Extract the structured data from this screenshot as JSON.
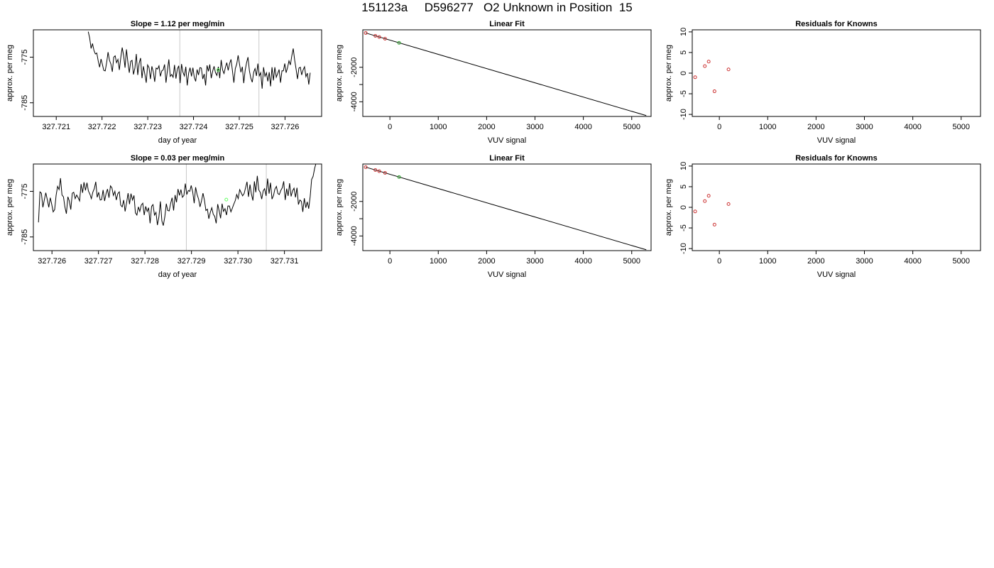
{
  "title": "151123a     D596277   O2 Unknown in Position  15",
  "chart_data": [
    {
      "type": "line",
      "title": "Slope =  1.12  per meg/min",
      "xlabel": "day of year",
      "ylabel": "approx. per meg",
      "xlim": [
        327.7205,
        327.7268
      ],
      "ylim": [
        -788,
        -769
      ],
      "xticks": [
        327.721,
        327.722,
        327.723,
        327.724,
        327.725,
        327.726
      ],
      "xtick_labels": [
        "327.721",
        "327.722",
        "327.723",
        "327.724",
        "327.725",
        "327.726"
      ],
      "yticks": [
        -775,
        -785
      ],
      "ytick_labels": [
        "-775",
        "-785"
      ],
      "vlines": [
        327.7237,
        327.72543
      ],
      "trace": {
        "x_start": 327.7217,
        "x_end": 327.72655,
        "y": [
          -769.4,
          -770.8,
          -773.1,
          -772.0,
          -773.5,
          -774.3,
          -774.1,
          -775.8,
          -777.2,
          -775.4,
          -776.6,
          -777.9,
          -778.0,
          -776.2,
          -773.9,
          -775.7,
          -776.5,
          -778.2,
          -775.0,
          -774.7,
          -776.2,
          -775.5,
          -777.8,
          -775.1,
          -772.9,
          -774.6,
          -777.3,
          -773.3,
          -776.1,
          -778.4,
          -775.9,
          -775.7,
          -778.8,
          -777.4,
          -774.3,
          -778.9,
          -776.3,
          -775.2,
          -779.6,
          -777.0,
          -778.7,
          -780.6,
          -776.7,
          -777.3,
          -779.8,
          -777.0,
          -778.2,
          -780.4,
          -777.4,
          -777.6,
          -776.9,
          -779.2,
          -778.0,
          -777.8,
          -776.6,
          -780.6,
          -777.9,
          -775.5,
          -779.2,
          -778.8,
          -779.4,
          -776.7,
          -779.7,
          -777.6,
          -776.9,
          -780.7,
          -776.5,
          -778.3,
          -779.1,
          -777.1,
          -781.2,
          -778.5,
          -777.3,
          -779.2,
          -777.3,
          -779.4,
          -780.3,
          -777.7,
          -778.9,
          -777.3,
          -777.4,
          -779.8,
          -778.7,
          -781.2,
          -776.8,
          -778.1,
          -776.6,
          -779.6,
          -778.1,
          -777.0,
          -778.4,
          -779.0,
          -777.1,
          -779.6,
          -775.6,
          -777.8,
          -778.6,
          -777.3,
          -776.2,
          -777.9,
          -776.4,
          -775.5,
          -778.0,
          -780.6,
          -777.5,
          -776.5,
          -774.6,
          -776.5,
          -778.3,
          -777.1,
          -780.7,
          -777.9,
          -776.2,
          -775.0,
          -778.0,
          -779.6,
          -780.5,
          -778.3,
          -777.5,
          -779.1,
          -776.4,
          -779.1,
          -778.4,
          -781.9,
          -777.2,
          -779.2,
          -778.4,
          -780.3,
          -778.3,
          -781.4,
          -777.2,
          -780.1,
          -777.2,
          -779.4,
          -778.6,
          -777.7,
          -780.6,
          -778.0,
          -778.0,
          -776.4,
          -778.4,
          -777.3,
          -775.8,
          -776.7,
          -774.7,
          -773.1,
          -775.6,
          -777.6,
          -779.8,
          -777.4,
          -777.2,
          -778.9,
          -777.8,
          -777.1,
          -779.3,
          -778.5,
          -781.0,
          -778.4
        ]
      },
      "marker": {
        "x": 327.72454,
        "y": -777.8,
        "color": "#66ff66"
      }
    },
    {
      "type": "scatter",
      "title": "Linear Fit",
      "xlabel": "VUV signal",
      "ylabel": "approx. per meg",
      "xlim": [
        -560,
        5400
      ],
      "ylim": [
        -4850,
        170
      ],
      "xticks": [
        0,
        1000,
        2000,
        3000,
        4000,
        5000
      ],
      "xtick_labels": [
        "0",
        "1000",
        "2000",
        "3000",
        "4000",
        "5000"
      ],
      "yticks": [
        -2000,
        -3000,
        -4000
      ],
      "ytick_labels": [
        "-2000",
        "",
        "-4000"
      ],
      "fit_line": {
        "x": [
          -500,
          5300
        ],
        "y": [
          -13,
          -4800
        ]
      },
      "points": [
        {
          "x": -500,
          "y": -13,
          "color": "#cc3333"
        },
        {
          "x": -300,
          "y": -180,
          "color": "#cc3333"
        },
        {
          "x": -220,
          "y": -247,
          "color": "#cc3333"
        },
        {
          "x": -100,
          "y": -346,
          "color": "#cc3333"
        },
        {
          "x": 190,
          "y": -585,
          "color": "#33aa33"
        }
      ]
    },
    {
      "type": "scatter",
      "title": "Residuals for Knowns",
      "xlabel": "VUV signal",
      "ylabel": "approx. per meg",
      "xlim": [
        -560,
        5400
      ],
      "ylim": [
        -10.5,
        10.5
      ],
      "xticks": [
        0,
        1000,
        2000,
        3000,
        4000,
        5000
      ],
      "xtick_labels": [
        "0",
        "1000",
        "2000",
        "3000",
        "4000",
        "5000"
      ],
      "yticks": [
        10,
        5,
        0,
        -5,
        -10
      ],
      "ytick_labels": [
        "10",
        "5",
        "0",
        "-5",
        "-10"
      ],
      "points": [
        {
          "x": -500,
          "y": -1.0,
          "color": "#cc3333"
        },
        {
          "x": -300,
          "y": 1.7,
          "color": "#cc3333"
        },
        {
          "x": -220,
          "y": 2.8,
          "color": "#cc3333"
        },
        {
          "x": -100,
          "y": -4.4,
          "color": "#cc3333"
        },
        {
          "x": 190,
          "y": 0.9,
          "color": "#cc3333"
        }
      ]
    },
    {
      "type": "line",
      "title": "Slope =  0.03  per meg/min",
      "xlabel": "day of year",
      "ylabel": "approx. per meg",
      "xlim": [
        327.7256,
        327.7318
      ],
      "ylim": [
        -788,
        -769
      ],
      "xticks": [
        327.726,
        327.727,
        327.728,
        327.729,
        327.73,
        327.731
      ],
      "xtick_labels": [
        "327.726",
        "327.727",
        "327.728",
        "327.729",
        "327.730",
        "327.731"
      ],
      "yticks": [
        -775,
        -785
      ],
      "ytick_labels": [
        "-775",
        "-785"
      ],
      "vlines": [
        327.72889,
        327.73061
      ],
      "trace": {
        "x_start": 327.72571,
        "x_end": 327.73168,
        "y": [
          -781.8,
          -775.1,
          -775.4,
          -778.5,
          -776.8,
          -775.3,
          -776.8,
          -778.5,
          -776.4,
          -777.8,
          -779.5,
          -779.0,
          -775.9,
          -773.9,
          -774.6,
          -772.1,
          -775.8,
          -776.2,
          -778.4,
          -779.9,
          -776.2,
          -777.1,
          -779.0,
          -775.4,
          -775.2,
          -776.6,
          -775.8,
          -776.4,
          -777.1,
          -773.4,
          -775.3,
          -773.0,
          -774.8,
          -773.1,
          -774.9,
          -775.6,
          -776.6,
          -775.2,
          -774.4,
          -772.9,
          -776.3,
          -775.2,
          -776.9,
          -776.8,
          -774.7,
          -777.1,
          -775.5,
          -774.5,
          -776.4,
          -773.8,
          -774.2,
          -775.9,
          -775.0,
          -776.9,
          -775.5,
          -775.1,
          -778.0,
          -778.4,
          -776.9,
          -779.4,
          -777.5,
          -775.4,
          -777.8,
          -775.5,
          -776.9,
          -775.9,
          -779.7,
          -780.2,
          -778.4,
          -779.4,
          -778.0,
          -777.6,
          -780.2,
          -778.3,
          -779.4,
          -778.6,
          -782.0,
          -778.3,
          -777.9,
          -780.2,
          -779.6,
          -782.4,
          -780.6,
          -777.2,
          -781.5,
          -782.5,
          -780.6,
          -777.7,
          -779.2,
          -779.3,
          -777.6,
          -776.4,
          -779.2,
          -775.8,
          -777.4,
          -774.5,
          -775.9,
          -774.6,
          -776.3,
          -775.9,
          -773.3,
          -775.7,
          -774.8,
          -775.0,
          -773.7,
          -775.1,
          -777.6,
          -774.1,
          -775.7,
          -776.7,
          -778.4,
          -777.1,
          -775.4,
          -776.9,
          -779.2,
          -778.9,
          -781.0,
          -779.6,
          -778.6,
          -780.0,
          -780.5,
          -782.0,
          -777.8,
          -779.2,
          -780.9,
          -777.7,
          -779.4,
          -778.8,
          -780.2,
          -778.2,
          -778.2,
          -779.5,
          -778.7,
          -777.8,
          -777.0,
          -775.7,
          -776.6,
          -774.6,
          -775.3,
          -776.0,
          -775.5,
          -774.2,
          -772.9,
          -776.2,
          -773.5,
          -775.6,
          -777.0,
          -772.8,
          -775.2,
          -771.6,
          -774.7,
          -775.2,
          -776.7,
          -774.9,
          -774.4,
          -776.0,
          -772.2,
          -775.5,
          -773.1,
          -776.7,
          -775.9,
          -774.5,
          -773.9,
          -775.5,
          -775.7,
          -774.8,
          -774.2,
          -772.8,
          -776.9,
          -774.4,
          -776.0,
          -773.2,
          -776.1,
          -774.9,
          -774.3,
          -776.3,
          -774.2,
          -777.9,
          -776.9,
          -777.2,
          -779.5,
          -776.5,
          -778.6,
          -777.3,
          -778.8,
          -776.1,
          -772.4,
          -771.7,
          -770.0,
          -768.8
        ]
      },
      "marker": {
        "x": 327.72975,
        "y": -776.8,
        "color": "#66ff66"
      }
    },
    {
      "type": "scatter",
      "title": "Linear Fit",
      "xlabel": "VUV signal",
      "ylabel": "approx. per meg",
      "xlim": [
        -560,
        5400
      ],
      "ylim": [
        -4850,
        170
      ],
      "xticks": [
        0,
        1000,
        2000,
        3000,
        4000,
        5000
      ],
      "xtick_labels": [
        "0",
        "1000",
        "2000",
        "3000",
        "4000",
        "5000"
      ],
      "yticks": [
        -2000,
        -3000,
        -4000
      ],
      "ytick_labels": [
        "-2000",
        "",
        "-4000"
      ],
      "fit_line": {
        "x": [
          -500,
          5300
        ],
        "y": [
          -13,
          -4800
        ]
      },
      "points": [
        {
          "x": -500,
          "y": -13,
          "color": "#cc3333"
        },
        {
          "x": -300,
          "y": -180,
          "color": "#cc3333"
        },
        {
          "x": -220,
          "y": -247,
          "color": "#cc3333"
        },
        {
          "x": -100,
          "y": -346,
          "color": "#cc3333"
        },
        {
          "x": 190,
          "y": -585,
          "color": "#33aa33"
        }
      ]
    },
    {
      "type": "scatter",
      "title": "Residuals for Knowns",
      "xlabel": "VUV signal",
      "ylabel": "approx. per meg",
      "xlim": [
        -560,
        5400
      ],
      "ylim": [
        -10.5,
        10.5
      ],
      "xticks": [
        0,
        1000,
        2000,
        3000,
        4000,
        5000
      ],
      "xtick_labels": [
        "0",
        "1000",
        "2000",
        "3000",
        "4000",
        "5000"
      ],
      "yticks": [
        10,
        5,
        0,
        -5,
        -10
      ],
      "ytick_labels": [
        "10",
        "5",
        "0",
        "-5",
        "-10"
      ],
      "points": [
        {
          "x": -500,
          "y": -1.0,
          "color": "#cc3333"
        },
        {
          "x": -300,
          "y": 1.5,
          "color": "#cc3333"
        },
        {
          "x": -220,
          "y": 2.8,
          "color": "#cc3333"
        },
        {
          "x": -100,
          "y": -4.2,
          "color": "#cc3333"
        },
        {
          "x": 190,
          "y": 0.8,
          "color": "#cc3333"
        }
      ]
    }
  ]
}
